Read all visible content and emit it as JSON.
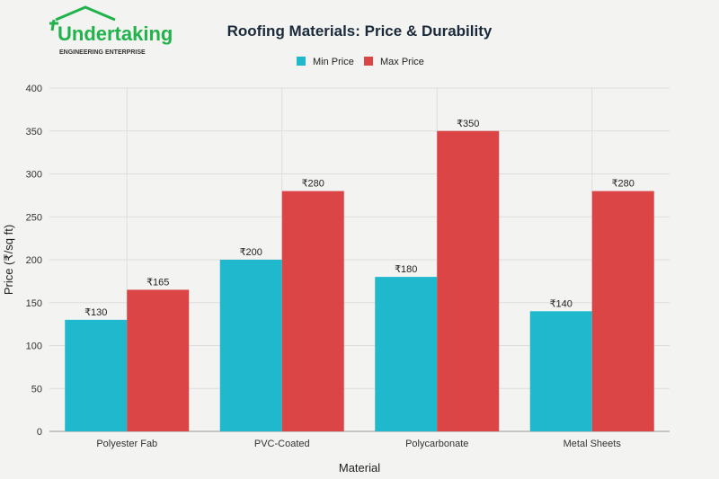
{
  "logo": {
    "name": "Undertaking",
    "tagline": "ENGINEERING ENTERPRISE",
    "color": "#22b24c"
  },
  "chart_data": {
    "type": "bar",
    "title": "Roofing Materials: Price & Durability",
    "xlabel": "Material",
    "ylabel": "Price (₹/sq ft)",
    "ylim": [
      0,
      400
    ],
    "yticks": [
      0,
      50,
      100,
      150,
      200,
      250,
      300,
      350,
      400
    ],
    "grid": true,
    "legend": "top-center",
    "categories": [
      "Polyester Fab",
      "PVC-Coated",
      "Polycarbonate",
      "Metal Sheets"
    ],
    "series": [
      {
        "name": "Min Price",
        "color": "#1fb8cd",
        "values": [
          130,
          200,
          180,
          140
        ],
        "labels": [
          "₹130",
          "₹200",
          "₹180",
          "₹140"
        ]
      },
      {
        "name": "Max Price",
        "color": "#db4545",
        "values": [
          165,
          280,
          350,
          280
        ],
        "labels": [
          "₹165",
          "₹280",
          "₹350",
          "₹280"
        ]
      }
    ]
  }
}
